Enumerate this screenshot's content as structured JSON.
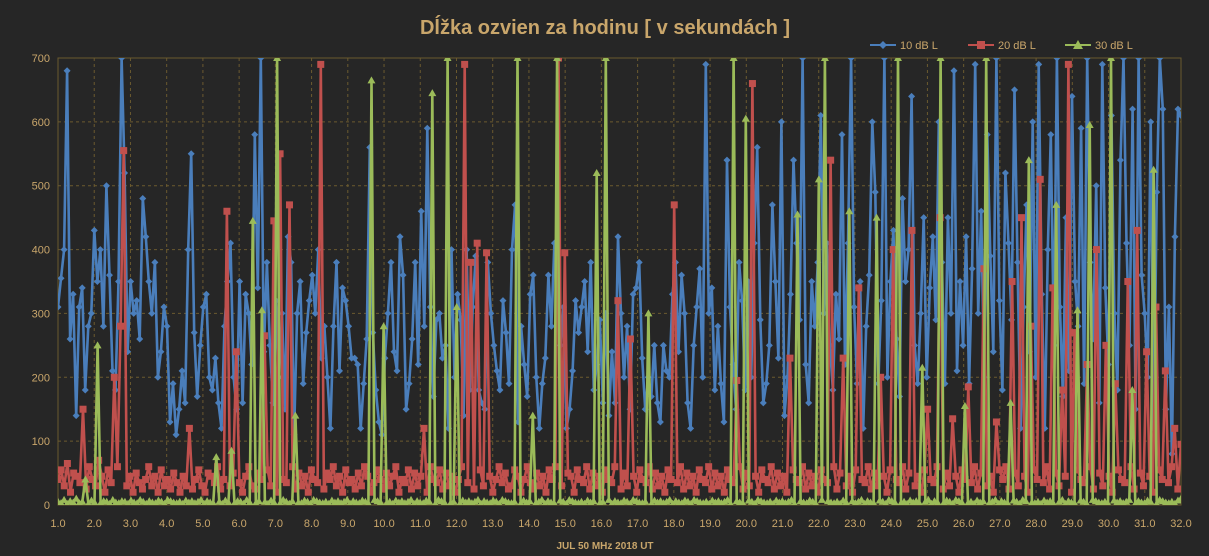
{
  "chart_data": {
    "type": "line",
    "title": "Dĺžka ozvien za hodinu [ v sekundách ]",
    "xlabel": "JUL 50 MHz  2018  UT",
    "ylabel": "",
    "ylim": [
      0,
      700
    ],
    "xlim": [
      1.0,
      32.0
    ],
    "yticks": [
      "0",
      "100",
      "200",
      "300",
      "400",
      "500",
      "600",
      "700"
    ],
    "xticks": [
      "1.0",
      "2.0",
      "3.0",
      "4.0",
      "5.0",
      "6.0",
      "7.0",
      "8.0",
      "9.0",
      "10.0",
      "11.0",
      "12.0",
      "13.0",
      "14.0",
      "15.0",
      "16.0",
      "17.0",
      "18.0",
      "19.0",
      "20.0",
      "21.0",
      "22.0",
      "23.0",
      "24.0",
      "25.0",
      "26.0",
      "27.0",
      "28.0",
      "29.0",
      "30.0",
      "31.0",
      "32.0"
    ],
    "grid": true,
    "legend_position": "top-right",
    "colors": {
      "background": "#262626",
      "grid": "#6b5a2f",
      "text": "#c9a66b",
      "series_10": "#4a7ebb",
      "series_20": "#c0504d",
      "series_30": "#9bbb59"
    },
    "series": [
      {
        "name": "10 dB L",
        "marker": "diamond",
        "values": [
          310,
          355,
          400,
          680,
          260,
          330,
          140,
          310,
          340,
          180,
          280,
          300,
          430,
          350,
          400,
          280,
          500,
          360,
          210,
          180,
          350,
          720,
          520,
          240,
          350,
          300,
          320,
          260,
          480,
          420,
          350,
          300,
          380,
          200,
          240,
          310,
          280,
          130,
          190,
          110,
          150,
          210,
          160,
          400,
          550,
          270,
          170,
          250,
          310,
          330,
          200,
          180,
          230,
          160,
          120,
          280,
          350,
          410,
          200,
          150,
          350,
          160,
          330,
          300,
          220,
          580,
          340,
          720,
          240,
          380,
          250,
          160,
          320,
          200,
          300,
          150,
          420,
          380,
          110,
          300,
          350,
          190,
          270,
          320,
          360,
          300,
          400,
          230,
          280,
          200,
          120,
          280,
          380,
          210,
          340,
          320,
          280,
          230,
          230,
          220,
          120,
          190,
          260,
          560,
          270,
          180,
          130,
          110,
          230,
          300,
          380,
          240,
          210,
          420,
          360,
          150,
          190,
          260,
          380,
          220,
          460,
          280,
          590,
          310,
          170,
          290,
          300,
          230,
          250,
          120,
          400,
          200,
          330,
          290,
          140,
          400,
          180,
          310,
          390,
          180,
          160,
          150,
          380,
          300,
          250,
          210,
          180,
          320,
          270,
          190,
          400,
          470,
          130,
          280,
          220,
          170,
          330,
          360,
          200,
          120,
          190,
          230,
          360,
          280,
          410,
          370,
          250,
          310,
          120,
          150,
          210,
          320,
          270,
          310,
          350,
          240,
          380,
          180,
          220,
          290,
          160,
          300,
          140,
          240,
          160,
          420,
          300,
          200,
          280,
          150,
          330,
          340,
          380,
          230,
          150,
          200,
          170,
          250,
          160,
          130,
          250,
          210,
          200,
          330,
          380,
          240,
          360,
          300,
          160,
          120,
          250,
          310,
          370,
          200,
          690,
          300,
          340,
          180,
          280,
          190,
          130,
          540,
          310,
          220,
          150,
          380,
          320,
          180,
          350,
          200,
          410,
          560,
          290,
          160,
          190,
          250,
          470,
          350,
          230,
          600,
          140,
          200,
          330,
          540,
          410,
          290,
          700,
          220,
          160,
          350,
          280,
          380,
          610,
          300,
          410,
          250,
          180,
          330,
          260,
          580,
          220,
          410,
          700,
          310,
          190,
          350,
          120,
          280,
          360,
          600,
          490,
          190,
          320,
          700,
          200,
          350,
          430,
          260,
          170,
          480,
          350,
          400,
          640,
          250,
          190,
          300,
          450,
          200,
          340,
          420,
          290,
          600,
          380,
          190,
          450,
          300,
          680,
          210,
          350,
          250,
          420,
          190,
          370,
          690,
          300,
          460,
          200,
          580,
          390,
          240,
          700,
          320,
          180,
          520,
          410,
          290,
          650,
          380,
          120,
          310,
          470,
          240,
          600,
          200,
          690,
          330,
          120,
          400,
          580,
          250,
          700,
          310,
          170,
          450,
          210,
          640,
          350,
          280,
          590,
          190,
          700,
          380,
          260,
          500,
          160,
          690,
          340,
          220,
          610,
          300,
          180,
          540,
          700,
          410,
          250,
          620,
          150,
          700,
          360,
          300,
          200,
          600,
          120,
          490,
          700,
          620,
          150,
          310,
          80,
          420,
          620,
          610
        ]
      },
      {
        "name": "20 dB L",
        "marker": "square",
        "values": [
          40,
          55,
          30,
          65,
          20,
          50,
          45,
          35,
          150,
          25,
          60,
          40,
          30,
          70,
          45,
          20,
          55,
          35,
          200,
          60,
          280,
          555,
          30,
          45,
          20,
          50,
          35,
          25,
          40,
          60,
          30,
          45,
          20,
          55,
          30,
          40,
          25,
          50,
          35,
          20,
          45,
          30,
          120,
          25,
          40,
          55,
          30,
          20,
          50,
          45,
          35,
          60,
          25,
          40,
          460,
          30,
          50,
          240,
          35,
          20,
          45,
          60,
          30,
          25,
          50,
          40,
          265,
          55,
          30,
          445,
          20,
          550,
          40,
          35,
          470,
          60,
          25,
          50,
          30,
          45,
          20,
          55,
          40,
          35,
          690,
          25,
          50,
          40,
          60,
          30,
          45,
          20,
          55,
          35,
          40,
          25,
          50,
          30,
          60,
          45,
          20,
          35,
          55,
          40,
          25,
          50,
          30,
          45,
          60,
          20,
          40,
          35,
          55,
          25,
          50,
          30,
          45,
          120,
          20,
          60,
          40,
          35,
          55,
          25,
          50,
          30,
          45,
          20,
          40,
          60,
          690,
          35,
          380,
          25,
          410,
          55,
          30,
          395,
          45,
          20,
          40,
          60,
          35,
          50,
          25,
          30,
          55,
          45,
          20,
          40,
          60,
          35,
          25,
          50,
          30,
          45,
          20,
          55,
          40,
          60,
          700,
          30,
          395,
          50,
          45,
          20,
          55,
          40,
          35,
          60,
          25,
          50,
          30,
          45,
          20,
          55,
          40,
          35,
          60,
          320,
          25,
          50,
          30,
          260,
          45,
          20,
          55,
          40,
          35,
          60,
          25,
          50,
          30,
          45,
          20,
          55,
          40,
          470,
          35,
          60,
          25,
          50,
          30,
          45,
          20,
          55,
          40,
          35,
          60,
          25,
          50,
          30,
          45,
          20,
          55,
          40,
          35,
          195,
          60,
          25,
          50,
          30,
          660,
          45,
          20,
          55,
          40,
          35,
          60,
          25,
          50,
          30,
          45,
          20,
          230,
          55,
          40,
          35,
          60,
          25,
          50,
          30,
          45,
          20,
          55,
          40,
          35,
          540,
          60,
          25,
          50,
          230,
          30,
          45,
          20,
          55,
          340,
          40,
          35,
          60,
          25,
          50,
          30,
          200,
          45,
          20,
          55,
          400,
          40,
          35,
          60,
          25,
          50,
          430,
          30,
          45,
          20,
          55,
          150,
          40,
          35,
          60,
          450,
          25,
          50,
          30,
          135,
          45,
          20,
          55,
          40,
          185,
          35,
          60,
          25,
          50,
          370,
          30,
          45,
          20,
          130,
          55,
          40,
          60,
          25,
          350,
          50,
          30,
          450,
          45,
          20,
          280,
          55,
          40,
          510,
          35,
          60,
          25,
          340,
          50,
          30,
          180,
          45,
          690,
          20,
          270,
          55,
          40,
          35,
          220,
          60,
          25,
          400,
          50,
          30,
          250,
          45,
          20,
          190,
          55,
          40,
          35,
          350,
          60,
          25,
          430,
          50,
          30,
          240,
          45,
          20,
          310,
          55,
          40,
          210,
          35,
          60,
          120,
          25,
          95
        ]
      },
      {
        "name": "30 dB L",
        "marker": "triangle",
        "values": [
          5,
          3,
          8,
          2,
          6,
          4,
          10,
          3,
          5,
          40,
          2,
          7,
          4,
          250,
          3,
          6,
          5,
          2,
          8,
          4,
          3,
          6,
          5,
          2,
          7,
          4,
          3,
          8,
          5,
          2,
          6,
          4,
          3,
          7,
          5,
          2,
          8,
          6,
          4,
          3,
          5,
          2,
          7,
          4,
          6,
          3,
          5,
          8,
          2,
          6,
          4,
          3,
          75,
          5,
          2,
          7,
          4,
          85,
          3,
          6,
          5,
          2,
          8,
          4,
          445,
          3,
          6,
          305,
          5,
          2,
          7,
          4,
          700,
          3,
          8,
          5,
          2,
          6,
          140,
          4,
          3,
          7,
          5,
          2,
          8,
          6,
          4,
          3,
          5,
          2,
          7,
          4,
          6,
          3,
          5,
          8,
          2,
          6,
          4,
          3,
          7,
          5,
          2,
          665,
          8,
          6,
          4,
          280,
          3,
          5,
          2,
          7,
          4,
          6,
          3,
          5,
          8,
          2,
          6,
          4,
          3,
          7,
          5,
          645,
          2,
          8,
          6,
          4,
          700,
          3,
          5,
          310,
          2,
          7,
          4,
          6,
          3,
          5,
          8,
          2,
          6,
          4,
          3,
          7,
          5,
          2,
          8,
          6,
          4,
          3,
          5,
          700,
          2,
          7,
          4,
          6,
          140,
          3,
          5,
          8,
          2,
          6,
          4,
          3,
          700,
          7,
          5,
          2,
          8,
          6,
          4,
          3,
          5,
          2,
          7,
          4,
          6,
          520,
          3,
          5,
          700,
          8,
          2,
          6,
          4,
          3,
          7,
          5,
          2,
          8,
          6,
          4,
          3,
          5,
          300,
          2,
          7,
          4,
          6,
          3,
          5,
          8,
          2,
          6,
          4,
          3,
          7,
          5,
          2,
          8,
          6,
          4,
          3,
          5,
          2,
          7,
          4,
          6,
          3,
          5,
          8,
          2,
          700,
          6,
          4,
          3,
          605,
          7,
          5,
          2,
          8,
          6,
          4,
          3,
          5,
          2,
          7,
          4,
          6,
          3,
          5,
          8,
          2,
          455,
          6,
          4,
          3,
          7,
          5,
          2,
          510,
          8,
          700,
          6,
          4,
          3,
          5,
          2,
          7,
          4,
          460,
          6,
          3,
          5,
          8,
          2,
          6,
          4,
          3,
          450,
          7,
          5,
          2,
          8,
          6,
          4,
          700,
          3,
          5,
          2,
          7,
          4,
          6,
          3,
          215,
          5,
          8,
          2,
          6,
          4,
          700,
          3,
          7,
          5,
          2,
          8,
          6,
          4,
          155,
          3,
          5,
          2,
          7,
          4,
          6,
          700,
          3,
          5,
          8,
          2,
          6,
          4,
          3,
          160,
          7,
          5,
          2,
          8,
          6,
          540,
          4,
          3,
          5,
          2,
          7,
          4,
          6,
          3,
          470,
          5,
          8,
          2,
          6,
          4,
          3,
          305,
          7,
          5,
          2,
          595,
          8,
          6,
          4,
          3,
          5,
          2,
          700,
          7,
          4,
          6,
          3,
          5,
          8,
          180,
          2,
          6,
          4,
          3,
          7,
          5,
          525,
          2,
          8,
          6,
          4,
          3,
          5,
          2,
          7,
          10
        ]
      }
    ]
  }
}
